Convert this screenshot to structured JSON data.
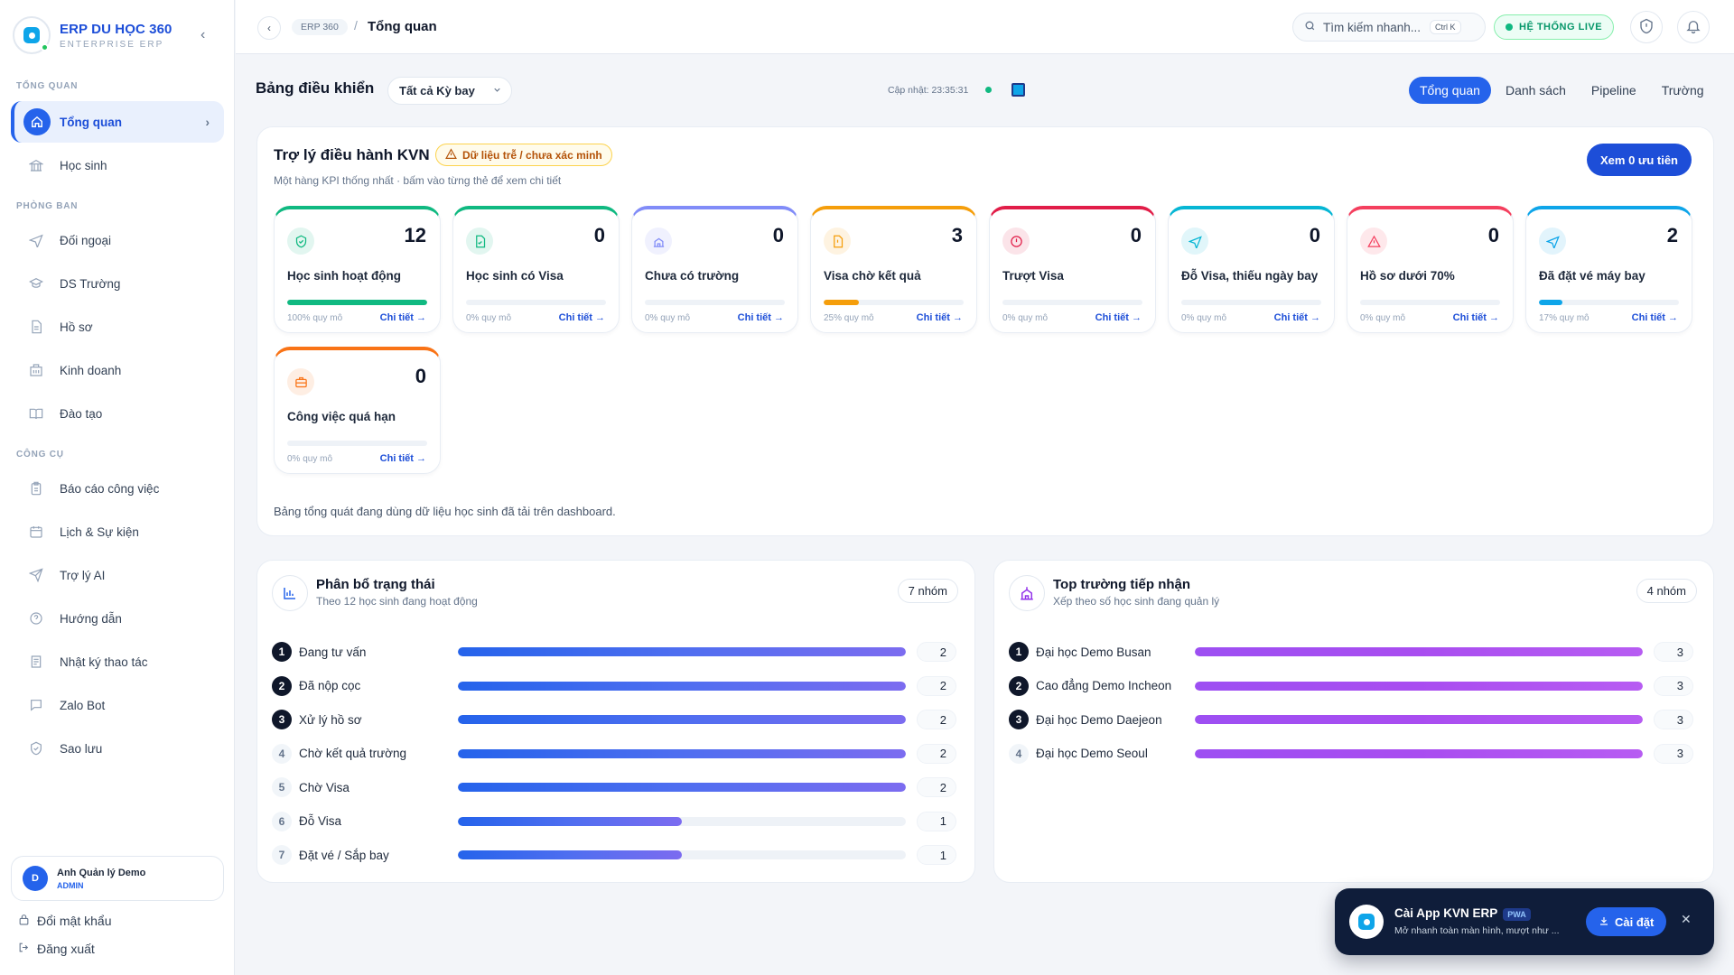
{
  "sidebar": {
    "brand_title": "ERP DU HỌC 360",
    "brand_sub": "ENTERPRISE ERP",
    "sections": [
      "TỔNG QUAN",
      "PHÒNG BAN",
      "CÔNG CỤ"
    ],
    "active_item": "Tổng quan",
    "dept_items": [
      "Học sinh",
      "Đối ngoại",
      "DS Trường",
      "Hồ sơ",
      "Kinh doanh",
      "Đào tạo"
    ],
    "tool_items": [
      "Báo cáo công việc",
      "Lịch & Sự kiện",
      "Trợ lý AI",
      "Hướng dẫn",
      "Nhật ký thao tác",
      "Zalo Bot",
      "Sao lưu"
    ],
    "user": {
      "initial": "D",
      "name": "Anh Quản lý Demo",
      "role": "ADMIN"
    },
    "change_password": "Đổi mật khẩu",
    "logout": "Đăng xuất"
  },
  "topbar": {
    "crumb": "ERP 360",
    "current": "Tổng quan",
    "search_placeholder": "Tìm kiếm nhanh...",
    "shortcut": "Ctrl K",
    "live_label": "HỆ THỐNG LIVE"
  },
  "dashboard": {
    "title": "Bảng điều khiển",
    "period": "Tất cả Kỳ bay",
    "updated": "Cập nhật: 23:35:31",
    "tabs": [
      "Tổng quan",
      "Danh sách",
      "Pipeline",
      "Trường"
    ]
  },
  "assistant": {
    "title": "Trợ lý điều hành KVN",
    "warning": "Dữ liệu trễ / chưa xác minh",
    "subtitle": "Một hàng KPI thống nhất · bấm vào từng thẻ để xem chi tiết",
    "priority_button": "Xem 0 ưu tiên",
    "detail_label": "Chi tiết →",
    "note": "Bảng tổng quát đang dùng dữ liệu học sinh đã tải trên dashboard.",
    "kpis": [
      {
        "label": "Học sinh hoạt động",
        "value": "12",
        "scale": "100% quy mô",
        "percent": 100,
        "color": "#10b981",
        "icon": "shield-check-icon"
      },
      {
        "label": "Học sinh có Visa",
        "value": "0",
        "scale": "0% quy mô",
        "percent": 0,
        "color": "#10b981",
        "icon": "file-check-icon"
      },
      {
        "label": "Chưa có trường",
        "value": "0",
        "scale": "0% quy mô",
        "percent": 0,
        "color": "#818cf8",
        "icon": "school-icon"
      },
      {
        "label": "Visa chờ kết quả",
        "value": "3",
        "scale": "25% quy mô",
        "percent": 25,
        "color": "#f59e0b",
        "icon": "file-alert-icon"
      },
      {
        "label": "Trượt Visa",
        "value": "0",
        "scale": "0% quy mô",
        "percent": 0,
        "color": "#e11d48",
        "icon": "alert-circle-icon"
      },
      {
        "label": "Đỗ Visa, thiếu ngày bay",
        "value": "0",
        "scale": "0% quy mô",
        "percent": 0,
        "color": "#06b6d4",
        "icon": "plane-icon"
      },
      {
        "label": "Hồ sơ dưới 70%",
        "value": "0",
        "scale": "0% quy mô",
        "percent": 0,
        "color": "#f43f5e",
        "icon": "warning-triangle-icon"
      },
      {
        "label": "Đã đặt vé máy bay",
        "value": "2",
        "scale": "17% quy mô",
        "percent": 17,
        "color": "#0ea5e9",
        "icon": "plane-icon"
      },
      {
        "label": "Công việc quá hạn",
        "value": "0",
        "scale": "0% quy mô",
        "percent": 0,
        "color": "#f97316",
        "icon": "briefcase-icon"
      }
    ]
  },
  "status_panel": {
    "title": "Phân bổ trạng thái",
    "subtitle": "Theo 12 học sinh đang hoạt động",
    "badge": "7 nhóm",
    "rows": [
      {
        "rank": "1",
        "label": "Đang tư vấn",
        "value": 2
      },
      {
        "rank": "2",
        "label": "Đã nộp cọc",
        "value": 2
      },
      {
        "rank": "3",
        "label": "Xử lý hồ sơ",
        "value": 2
      },
      {
        "rank": "4",
        "label": "Chờ kết quả trường",
        "value": 2
      },
      {
        "rank": "5",
        "label": "Chờ Visa",
        "value": 2
      },
      {
        "rank": "6",
        "label": "Đỗ Visa",
        "value": 1
      },
      {
        "rank": "7",
        "label": "Đặt vé / Sắp bay",
        "value": 1
      }
    ]
  },
  "school_panel": {
    "title": "Top trường tiếp nhận",
    "subtitle": "Xếp theo số học sinh đang quản lý",
    "badge": "4 nhóm",
    "rows": [
      {
        "rank": "1",
        "label": "Đại học Demo Busan",
        "value": 3
      },
      {
        "rank": "2",
        "label": "Cao đẳng Demo Incheon",
        "value": 3
      },
      {
        "rank": "3",
        "label": "Đại học Demo Daejeon",
        "value": 3
      },
      {
        "rank": "4",
        "label": "Đại học Demo Seoul",
        "value": 3
      }
    ]
  },
  "toast": {
    "title": "Cài App KVN ERP",
    "badge": "PWA",
    "subtitle": "Mở nhanh toàn màn hình, mượt như ...",
    "install": "Cài đặt"
  },
  "colors": {
    "primary": "#2563eb",
    "status_bar": "#4f6ef0",
    "school_bar": "#a94df0",
    "live": "#10b981"
  }
}
